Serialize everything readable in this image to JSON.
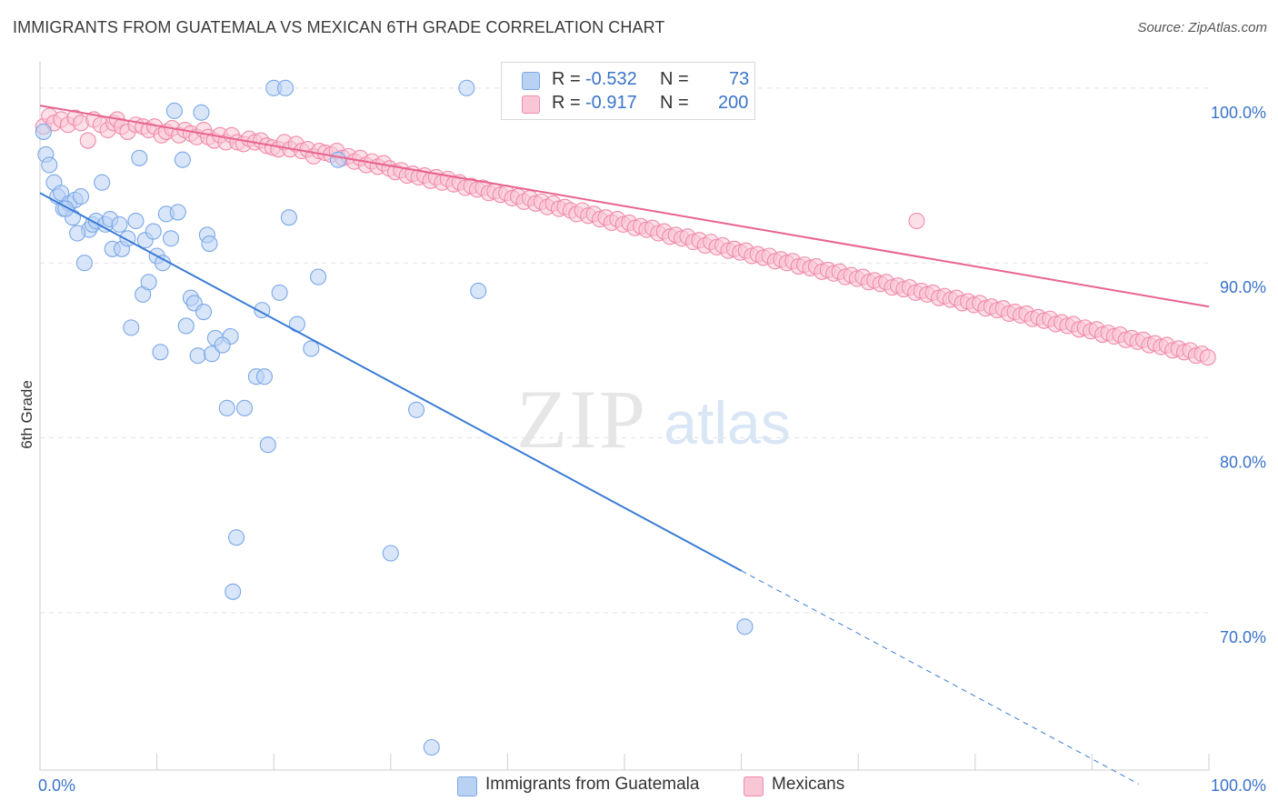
{
  "title": "IMMIGRANTS FROM GUATEMALA VS MEXICAN 6TH GRADE CORRELATION CHART",
  "source": "Source: ZipAtlas.com",
  "watermark": {
    "zip": "ZIP",
    "atlas": "atlas"
  },
  "legend": {
    "rows": [
      {
        "r_label": "R =",
        "r_value": "-0.532",
        "n_label": "N =",
        "n_value": "73"
      },
      {
        "r_label": "R =",
        "r_value": "-0.917",
        "n_label": "N =",
        "n_value": "200"
      }
    ]
  },
  "chart_data": {
    "type": "scatter",
    "title": "IMMIGRANTS FROM GUATEMALA VS MEXICAN 6TH GRADE CORRELATION CHART",
    "xlabel": "",
    "ylabel": "6th Grade",
    "xlim": [
      0,
      100
    ],
    "ylim": [
      61,
      101.5
    ],
    "x_tick_labels": [
      "0.0%",
      "100.0%"
    ],
    "y_ticks": [
      70,
      80,
      90,
      100
    ],
    "y_tick_labels": [
      "70.0%",
      "80.0%",
      "90.0%",
      "100.0%"
    ],
    "grid": true,
    "legend_position": "top-center",
    "series": [
      {
        "name": "Immigrants from Guatemala",
        "color": "#7aa8e8",
        "fill": "#b9d2f4",
        "line_color": "#3a7bd5",
        "r": -0.532,
        "n": 73,
        "trend": {
          "x0": 0,
          "y0": 94.0,
          "x1": 60,
          "y1": 72.4,
          "dashed_to_x": 94,
          "dashed_to_y": 60.2
        },
        "points": [
          [
            0.3,
            97.5
          ],
          [
            0.5,
            96.2
          ],
          [
            0.8,
            95.6
          ],
          [
            1.2,
            94.6
          ],
          [
            1.5,
            93.8
          ],
          [
            1.8,
            94.0
          ],
          [
            2.0,
            93.1
          ],
          [
            2.5,
            93.4
          ],
          [
            2.8,
            92.6
          ],
          [
            3.0,
            93.6
          ],
          [
            3.5,
            93.8
          ],
          [
            3.8,
            90.0
          ],
          [
            4.2,
            91.9
          ],
          [
            4.5,
            92.2
          ],
          [
            4.8,
            92.4
          ],
          [
            5.3,
            94.6
          ],
          [
            5.6,
            92.2
          ],
          [
            6.0,
            92.5
          ],
          [
            6.2,
            90.8
          ],
          [
            6.8,
            92.2
          ],
          [
            7.0,
            90.8
          ],
          [
            7.5,
            91.4
          ],
          [
            7.8,
            86.3
          ],
          [
            8.2,
            92.4
          ],
          [
            8.5,
            96.0
          ],
          [
            8.8,
            88.2
          ],
          [
            9.0,
            91.3
          ],
          [
            9.3,
            88.9
          ],
          [
            9.7,
            91.8
          ],
          [
            10.0,
            90.4
          ],
          [
            10.3,
            84.9
          ],
          [
            10.5,
            90.0
          ],
          [
            10.8,
            92.8
          ],
          [
            11.2,
            91.4
          ],
          [
            11.5,
            98.7
          ],
          [
            11.8,
            92.9
          ],
          [
            12.2,
            95.9
          ],
          [
            12.5,
            86.4
          ],
          [
            12.9,
            88.0
          ],
          [
            13.2,
            87.7
          ],
          [
            13.5,
            84.7
          ],
          [
            13.8,
            98.6
          ],
          [
            14.0,
            87.2
          ],
          [
            14.3,
            91.6
          ],
          [
            14.5,
            91.1
          ],
          [
            14.7,
            84.8
          ],
          [
            15.0,
            85.7
          ],
          [
            16.0,
            81.7
          ],
          [
            16.3,
            85.8
          ],
          [
            16.8,
            74.3
          ],
          [
            16.5,
            71.2
          ],
          [
            17.5,
            81.7
          ],
          [
            18.5,
            83.5
          ],
          [
            19.2,
            83.5
          ],
          [
            19.5,
            79.6
          ],
          [
            20.0,
            100.0
          ],
          [
            19.0,
            87.3
          ],
          [
            20.5,
            88.3
          ],
          [
            21.0,
            100.0
          ],
          [
            21.3,
            92.6
          ],
          [
            22.0,
            86.5
          ],
          [
            23.2,
            85.1
          ],
          [
            23.8,
            89.2
          ],
          [
            25.5,
            95.9
          ],
          [
            30.0,
            73.4
          ],
          [
            32.2,
            81.6
          ],
          [
            33.5,
            62.3
          ],
          [
            36.5,
            100.0
          ],
          [
            37.5,
            88.4
          ],
          [
            60.3,
            69.2
          ],
          [
            2.2,
            93.1
          ],
          [
            3.2,
            91.7
          ],
          [
            15.6,
            85.3
          ]
        ]
      },
      {
        "name": "Mexicans",
        "color": "#f08aab",
        "fill": "#f9c6d6",
        "line_color": "#e8638e",
        "r": -0.917,
        "n": 200,
        "trend": {
          "x0": 0,
          "y0": 99.0,
          "x1": 100,
          "y1": 87.5
        },
        "points": [
          [
            0.3,
            97.8
          ],
          [
            0.8,
            98.4
          ],
          [
            1.2,
            98.0
          ],
          [
            1.8,
            98.2
          ],
          [
            2.4,
            97.9
          ],
          [
            3.0,
            98.3
          ],
          [
            3.5,
            98.0
          ],
          [
            4.1,
            97.0
          ],
          [
            4.6,
            98.2
          ],
          [
            5.2,
            97.9
          ],
          [
            5.8,
            97.6
          ],
          [
            6.3,
            98.0
          ],
          [
            6.6,
            98.2
          ],
          [
            7.0,
            97.8
          ],
          [
            7.5,
            97.5
          ],
          [
            8.2,
            97.9
          ],
          [
            8.8,
            97.8
          ],
          [
            9.3,
            97.6
          ],
          [
            9.8,
            97.8
          ],
          [
            10.4,
            97.3
          ],
          [
            10.8,
            97.5
          ],
          [
            11.3,
            97.7
          ],
          [
            11.9,
            97.3
          ],
          [
            12.4,
            97.6
          ],
          [
            12.9,
            97.4
          ],
          [
            13.4,
            97.2
          ],
          [
            14.0,
            97.6
          ],
          [
            14.4,
            97.2
          ],
          [
            14.9,
            97.0
          ],
          [
            15.4,
            97.3
          ],
          [
            15.9,
            96.9
          ],
          [
            16.4,
            97.3
          ],
          [
            16.9,
            96.9
          ],
          [
            17.4,
            96.8
          ],
          [
            17.9,
            97.1
          ],
          [
            18.4,
            96.9
          ],
          [
            18.9,
            97.0
          ],
          [
            19.4,
            96.7
          ],
          [
            19.9,
            96.6
          ],
          [
            20.4,
            96.5
          ],
          [
            20.9,
            96.9
          ],
          [
            21.4,
            96.5
          ],
          [
            21.9,
            96.8
          ],
          [
            22.4,
            96.4
          ],
          [
            22.9,
            96.5
          ],
          [
            23.4,
            96.1
          ],
          [
            23.9,
            96.4
          ],
          [
            24.4,
            96.3
          ],
          [
            24.9,
            96.2
          ],
          [
            25.4,
            96.4
          ],
          [
            25.9,
            96.0
          ],
          [
            26.4,
            96.1
          ],
          [
            26.9,
            95.8
          ],
          [
            27.4,
            96.0
          ],
          [
            27.9,
            95.6
          ],
          [
            28.4,
            95.8
          ],
          [
            28.9,
            95.5
          ],
          [
            29.4,
            95.7
          ],
          [
            29.9,
            95.4
          ],
          [
            30.4,
            95.2
          ],
          [
            30.9,
            95.3
          ],
          [
            31.4,
            95.0
          ],
          [
            31.9,
            95.1
          ],
          [
            32.4,
            94.9
          ],
          [
            32.9,
            95.0
          ],
          [
            33.4,
            94.7
          ],
          [
            33.9,
            94.9
          ],
          [
            34.4,
            94.6
          ],
          [
            34.9,
            94.8
          ],
          [
            35.4,
            94.5
          ],
          [
            35.9,
            94.6
          ],
          [
            36.4,
            94.3
          ],
          [
            36.9,
            94.4
          ],
          [
            37.4,
            94.2
          ],
          [
            37.9,
            94.3
          ],
          [
            38.4,
            94.0
          ],
          [
            38.9,
            94.1
          ],
          [
            39.4,
            93.9
          ],
          [
            39.9,
            94.0
          ],
          [
            40.4,
            93.7
          ],
          [
            40.9,
            93.8
          ],
          [
            41.4,
            93.5
          ],
          [
            41.9,
            93.7
          ],
          [
            42.4,
            93.4
          ],
          [
            42.9,
            93.5
          ],
          [
            43.4,
            93.2
          ],
          [
            43.9,
            93.4
          ],
          [
            44.4,
            93.1
          ],
          [
            44.9,
            93.2
          ],
          [
            45.4,
            93.0
          ],
          [
            45.9,
            92.8
          ],
          [
            46.4,
            93.0
          ],
          [
            46.9,
            92.7
          ],
          [
            47.4,
            92.8
          ],
          [
            47.9,
            92.5
          ],
          [
            48.4,
            92.6
          ],
          [
            48.9,
            92.3
          ],
          [
            49.4,
            92.5
          ],
          [
            49.9,
            92.2
          ],
          [
            50.4,
            92.3
          ],
          [
            50.9,
            92.0
          ],
          [
            51.4,
            92.1
          ],
          [
            51.9,
            91.9
          ],
          [
            52.4,
            92.0
          ],
          [
            52.9,
            91.7
          ],
          [
            53.4,
            91.8
          ],
          [
            53.9,
            91.5
          ],
          [
            54.4,
            91.6
          ],
          [
            54.9,
            91.4
          ],
          [
            55.4,
            91.5
          ],
          [
            55.9,
            91.2
          ],
          [
            56.4,
            91.3
          ],
          [
            56.9,
            91.0
          ],
          [
            57.4,
            91.2
          ],
          [
            57.9,
            90.9
          ],
          [
            58.4,
            91.0
          ],
          [
            58.9,
            90.7
          ],
          [
            59.4,
            90.8
          ],
          [
            59.9,
            90.6
          ],
          [
            60.4,
            90.7
          ],
          [
            60.9,
            90.4
          ],
          [
            61.4,
            90.5
          ],
          [
            61.9,
            90.3
          ],
          [
            62.4,
            90.4
          ],
          [
            62.9,
            90.1
          ],
          [
            63.4,
            90.2
          ],
          [
            63.9,
            90.0
          ],
          [
            64.4,
            90.1
          ],
          [
            64.9,
            89.8
          ],
          [
            65.4,
            89.9
          ],
          [
            65.9,
            89.7
          ],
          [
            66.4,
            89.8
          ],
          [
            66.9,
            89.5
          ],
          [
            67.4,
            89.6
          ],
          [
            67.9,
            89.4
          ],
          [
            68.4,
            89.5
          ],
          [
            68.9,
            89.2
          ],
          [
            69.4,
            89.3
          ],
          [
            69.9,
            89.1
          ],
          [
            70.4,
            89.2
          ],
          [
            70.9,
            88.9
          ],
          [
            71.4,
            89.0
          ],
          [
            71.9,
            88.8
          ],
          [
            72.4,
            88.9
          ],
          [
            72.9,
            88.6
          ],
          [
            73.4,
            88.7
          ],
          [
            73.9,
            88.5
          ],
          [
            74.4,
            88.6
          ],
          [
            74.9,
            88.3
          ],
          [
            75.4,
            88.4
          ],
          [
            75.9,
            88.2
          ],
          [
            76.4,
            88.3
          ],
          [
            76.9,
            88.0
          ],
          [
            77.4,
            88.1
          ],
          [
            77.9,
            87.9
          ],
          [
            78.4,
            88.0
          ],
          [
            78.9,
            87.7
          ],
          [
            79.4,
            87.8
          ],
          [
            79.9,
            87.6
          ],
          [
            80.4,
            87.7
          ],
          [
            80.9,
            87.4
          ],
          [
            81.4,
            87.5
          ],
          [
            81.9,
            87.3
          ],
          [
            82.4,
            87.4
          ],
          [
            82.9,
            87.1
          ],
          [
            83.4,
            87.2
          ],
          [
            83.9,
            87.0
          ],
          [
            84.4,
            87.1
          ],
          [
            84.9,
            86.8
          ],
          [
            85.4,
            86.9
          ],
          [
            85.9,
            86.7
          ],
          [
            86.4,
            86.8
          ],
          [
            86.9,
            86.5
          ],
          [
            87.4,
            86.6
          ],
          [
            87.9,
            86.4
          ],
          [
            88.4,
            86.5
          ],
          [
            88.9,
            86.2
          ],
          [
            89.4,
            86.3
          ],
          [
            89.9,
            86.1
          ],
          [
            90.4,
            86.2
          ],
          [
            90.9,
            85.9
          ],
          [
            91.4,
            86.0
          ],
          [
            91.9,
            85.8
          ],
          [
            92.4,
            85.9
          ],
          [
            92.9,
            85.6
          ],
          [
            93.4,
            85.7
          ],
          [
            93.9,
            85.5
          ],
          [
            94.4,
            85.6
          ],
          [
            94.9,
            85.3
          ],
          [
            95.4,
            85.4
          ],
          [
            95.9,
            85.2
          ],
          [
            96.4,
            85.3
          ],
          [
            96.9,
            85.0
          ],
          [
            97.4,
            85.1
          ],
          [
            97.9,
            84.9
          ],
          [
            98.4,
            85.0
          ],
          [
            98.9,
            84.7
          ],
          [
            99.4,
            84.8
          ],
          [
            99.9,
            84.6
          ],
          [
            75.0,
            92.4
          ]
        ]
      }
    ]
  },
  "bottom_legend": [
    "Immigrants from Guatemala",
    "Mexicans"
  ]
}
